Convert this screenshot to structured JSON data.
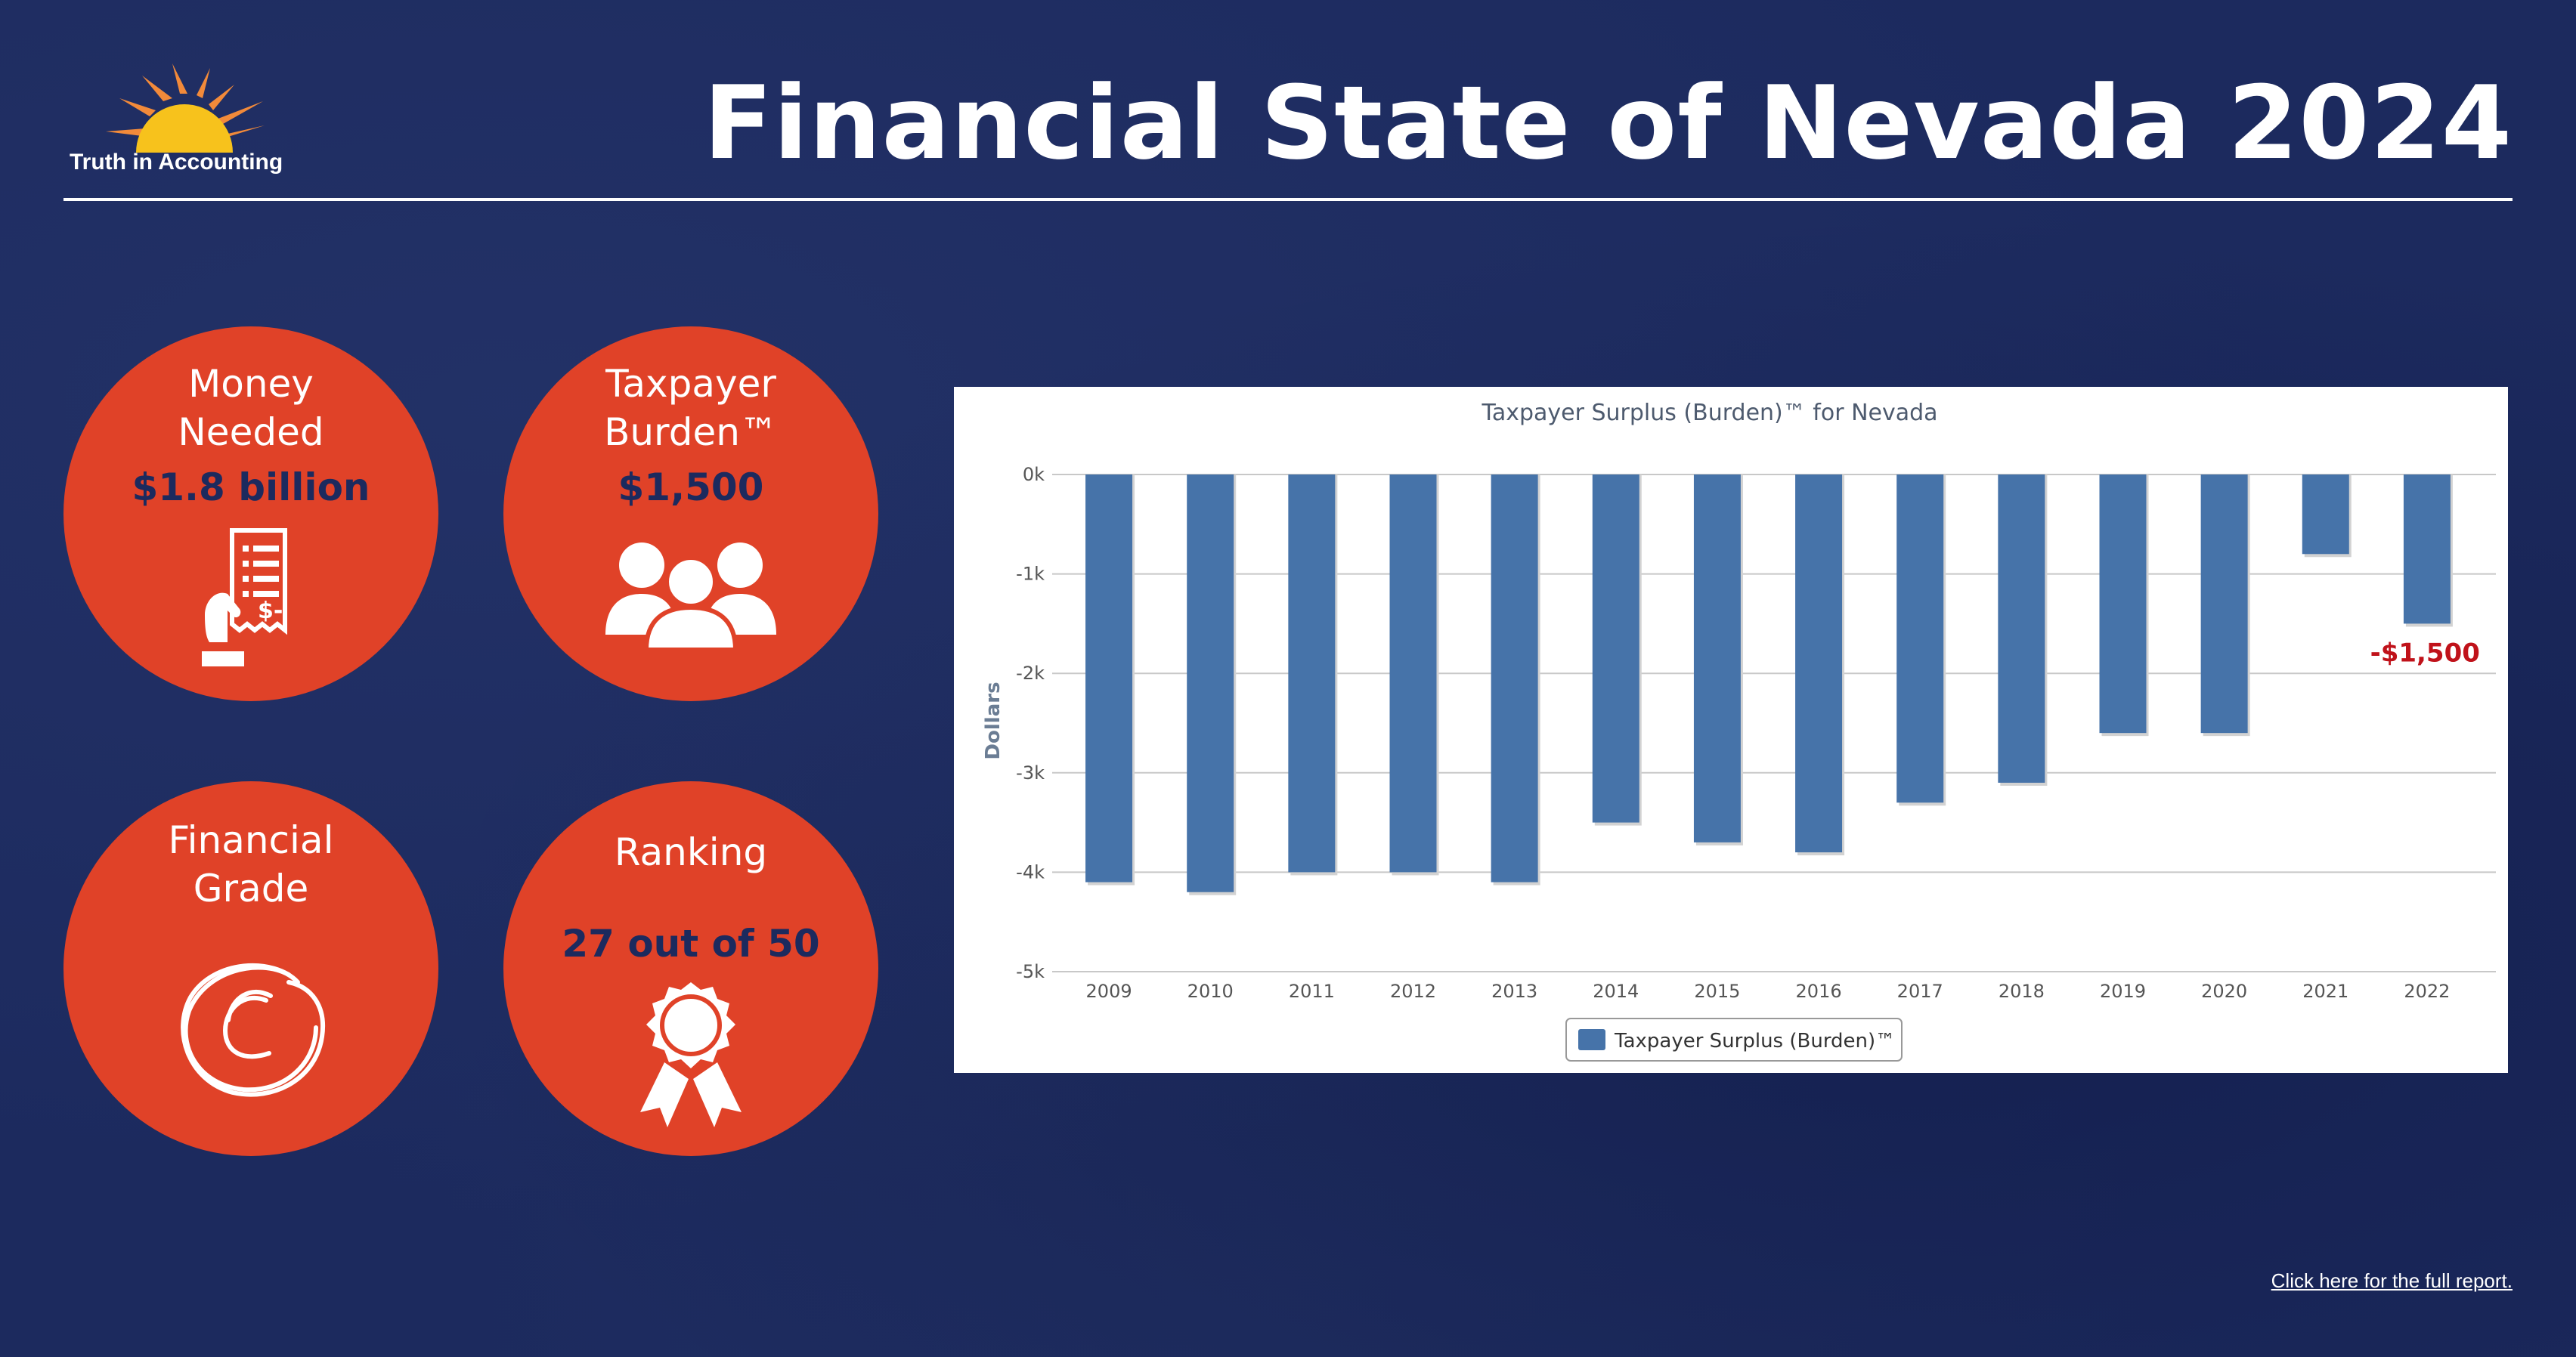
{
  "header": {
    "logo_text": "Truth in Accounting",
    "title": "Financial State of Nevada 2024"
  },
  "colors": {
    "background": "#1c2a5e",
    "accent_orange": "#e04228",
    "bar_blue": "#4673a9",
    "callout_red": "#c0121a"
  },
  "circles": [
    {
      "label_lines": [
        "Money",
        "Needed"
      ],
      "value": "$1.8 billion",
      "icon": "receipt-hand-icon"
    },
    {
      "label_lines": [
        "Taxpayer",
        "Burden™"
      ],
      "value": "$1,500",
      "icon": "people-group-icon"
    },
    {
      "label_lines": [
        "Financial",
        "Grade"
      ],
      "value": "",
      "icon": "grade-c-icon"
    },
    {
      "label_lines": [
        "Ranking"
      ],
      "value": "27 out of 50",
      "icon": "award-ribbon-icon"
    }
  ],
  "chart_data": {
    "type": "bar",
    "title": "Taxpayer Surplus (Burden)™ for Nevada",
    "ylabel": "Dollars",
    "xlabel": "",
    "ylim": [
      -5000,
      0
    ],
    "yticks": [
      0,
      -1000,
      -2000,
      -3000,
      -4000,
      -5000
    ],
    "ytick_labels": [
      "0k",
      "-1k",
      "-2k",
      "-3k",
      "-4k",
      "-5k"
    ],
    "grid": true,
    "legend_position": "bottom-center",
    "categories": [
      "2009",
      "2010",
      "2011",
      "2012",
      "2013",
      "2014",
      "2015",
      "2016",
      "2017",
      "2018",
      "2019",
      "2020",
      "2021",
      "2022"
    ],
    "series": [
      {
        "name": "Taxpayer Surplus (Burden)™",
        "values": [
          -4100,
          -4200,
          -4000,
          -4000,
          -4100,
          -3500,
          -3700,
          -3800,
          -3300,
          -3100,
          -2600,
          -2600,
          -800,
          -1500
        ]
      }
    ],
    "annotations": [
      {
        "category": "2022",
        "text": "-$1,500"
      }
    ]
  },
  "footer": {
    "link_text": "Click here for the full report."
  }
}
